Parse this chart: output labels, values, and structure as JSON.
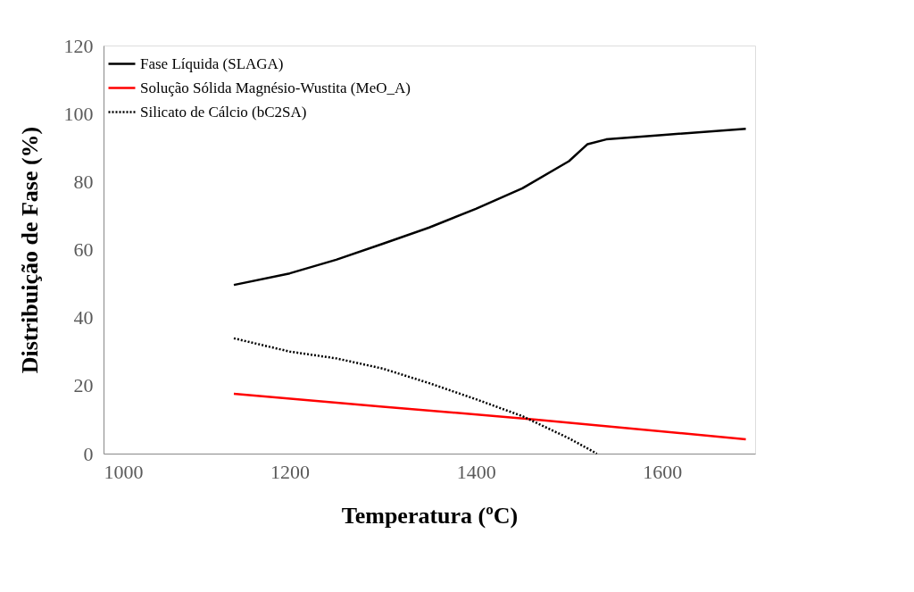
{
  "chart_data": {
    "type": "line",
    "xlabel": "Temperatura (ºC)",
    "ylabel": "Distribuição de Fase (%)",
    "xlim": [
      1000,
      1700
    ],
    "xticks": [
      {
        "value": 1000,
        "label": "1000"
      },
      {
        "value": 1200,
        "label": "1200"
      },
      {
        "value": 1400,
        "label": "1400"
      },
      {
        "value": 1600,
        "label": "1600"
      }
    ],
    "ylim": [
      0,
      120
    ],
    "yticks": [
      0,
      20,
      40,
      60,
      80,
      100,
      120
    ],
    "grid": false,
    "legend": "top left",
    "marker": "none",
    "series": [
      {
        "name": "Fase Líquida (SLAGA)",
        "color": "#000000",
        "line_style": "solid",
        "x": [
          1140,
          1200,
          1250,
          1300,
          1350,
          1400,
          1450,
          1500,
          1520,
          1540,
          1600,
          1690
        ],
        "values": [
          49.6,
          53,
          57,
          61.7,
          66.5,
          72,
          78,
          86,
          91,
          92.4,
          93.7,
          95.5
        ]
      },
      {
        "name": "Solução Sólida Magnésio-Wustita (MeO_A)",
        "color": "#ff0000",
        "line_style": "solid",
        "x": [
          1140,
          1300,
          1465,
          1690
        ],
        "values": [
          17.6,
          13.8,
          10,
          4.2
        ]
      },
      {
        "name": "Silicato de Cálcio (bC2SA)",
        "color": "#000000",
        "line_style": "dotted",
        "x": [
          1140,
          1200,
          1250,
          1300,
          1350,
          1400,
          1450,
          1500,
          1530
        ],
        "values": [
          33.9,
          30,
          28,
          25,
          20.7,
          16,
          11,
          4.5,
          0
        ]
      }
    ]
  }
}
